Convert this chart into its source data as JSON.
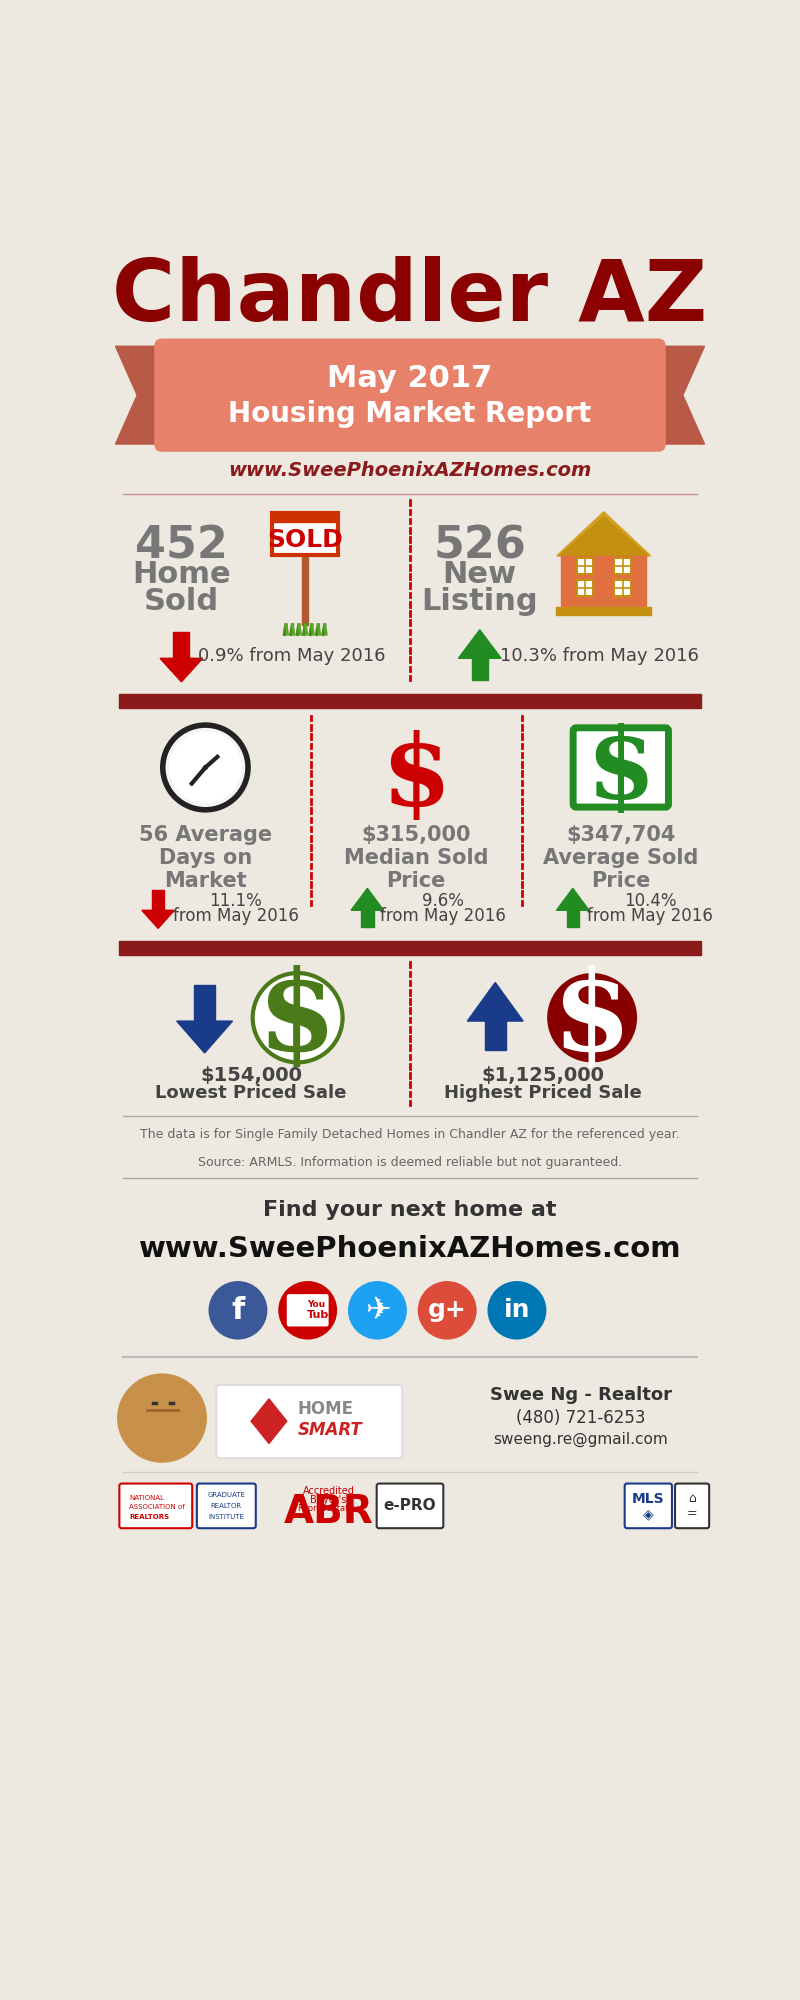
{
  "title": "Chandler AZ",
  "subtitle_line1": "May 2017",
  "subtitle_line2": "Housing Market Report",
  "website": "www.SweePhoenixAZHomes.com",
  "bg_color": "#ede8e0",
  "title_color": "#8b0000",
  "ribbon_color": "#e8816a",
  "ribbon_dark": "#b85a45",
  "ribbon_darker": "#8b3a28",
  "website_color": "#8b1a1a",
  "divider_color": "#8b1a1a",
  "stat1_number": "452",
  "stat1_label": "Home\nSold",
  "stat1_change": "0.9% from May 2016",
  "stat2_number": "526",
  "stat2_label": "New\nListing",
  "stat2_change": "10.3% from May 2016",
  "stat3_number": "56 Average\nDays on\nMarket",
  "stat3_change": "11.1%\nfrom May 2016",
  "stat4_number": "$315,000\nMedian Sold\nPrice",
  "stat4_change": "9.6%\nfrom May 2016",
  "stat5_number": "$347,704\nAverage Sold\nPrice",
  "stat5_change": "10.4%\nfrom May 2016",
  "low_price": "$154,000\nLowest Priced Sale",
  "high_price": "$1,125,000\nHighest Priced Sale",
  "disclaimer": "The data is for Single Family Detached Homes in Chandler AZ for the referenced year.\nSource: ARMLS. Information is deemed reliable but not guaranteed.",
  "cta_line1": "Find your next home at",
  "cta_line2": "www.SweePhoenixAZHomes.com",
  "contact_name": "Swee Ng - Realtor",
  "contact_phone": "(480) 721-6253",
  "contact_email": "sweeng.re@gmail.com",
  "gray_text": "#777777",
  "dark_text": "#444444",
  "arrow_down_color": "#cc0000",
  "arrow_up_color": "#228B22",
  "blue_arrow": "#1a3a8a",
  "green_circle_color": "#4a7a1a",
  "dark_red_circle": "#990000",
  "fb_color": "#3b5998",
  "yt_color": "#cc0000",
  "tw_color": "#1da1f2",
  "gp_color": "#dd4b39",
  "li_color": "#0077b5"
}
